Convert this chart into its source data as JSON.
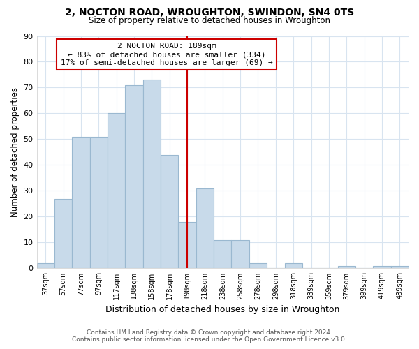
{
  "title": "2, NOCTON ROAD, WROUGHTON, SWINDON, SN4 0TS",
  "subtitle": "Size of property relative to detached houses in Wroughton",
  "xlabel": "Distribution of detached houses by size in Wroughton",
  "ylabel": "Number of detached properties",
  "bar_labels": [
    "37sqm",
    "57sqm",
    "77sqm",
    "97sqm",
    "117sqm",
    "138sqm",
    "158sqm",
    "178sqm",
    "198sqm",
    "218sqm",
    "238sqm",
    "258sqm",
    "278sqm",
    "298sqm",
    "318sqm",
    "339sqm",
    "359sqm",
    "379sqm",
    "399sqm",
    "419sqm",
    "439sqm"
  ],
  "bar_heights": [
    2,
    27,
    51,
    51,
    60,
    71,
    73,
    44,
    18,
    31,
    11,
    11,
    2,
    0,
    2,
    0,
    0,
    1,
    0,
    1,
    1
  ],
  "bar_color": "#c8daea",
  "bar_edge_color": "#9ab8d0",
  "property_line_x": 8.0,
  "annotation_title": "2 NOCTON ROAD: 189sqm",
  "annotation_line1": "← 83% of detached houses are smaller (334)",
  "annotation_line2": "17% of semi-detached houses are larger (69) →",
  "annotation_box_color": "#ffffff",
  "annotation_box_edge": "#cc0000",
  "line_color": "#cc0000",
  "ylim": [
    0,
    90
  ],
  "yticks": [
    0,
    10,
    20,
    30,
    40,
    50,
    60,
    70,
    80,
    90
  ],
  "footer_line1": "Contains HM Land Registry data © Crown copyright and database right 2024.",
  "footer_line2": "Contains public sector information licensed under the Open Government Licence v3.0.",
  "bg_color": "#ffffff",
  "plot_bg_color": "#ffffff",
  "grid_color": "#d8e4f0"
}
